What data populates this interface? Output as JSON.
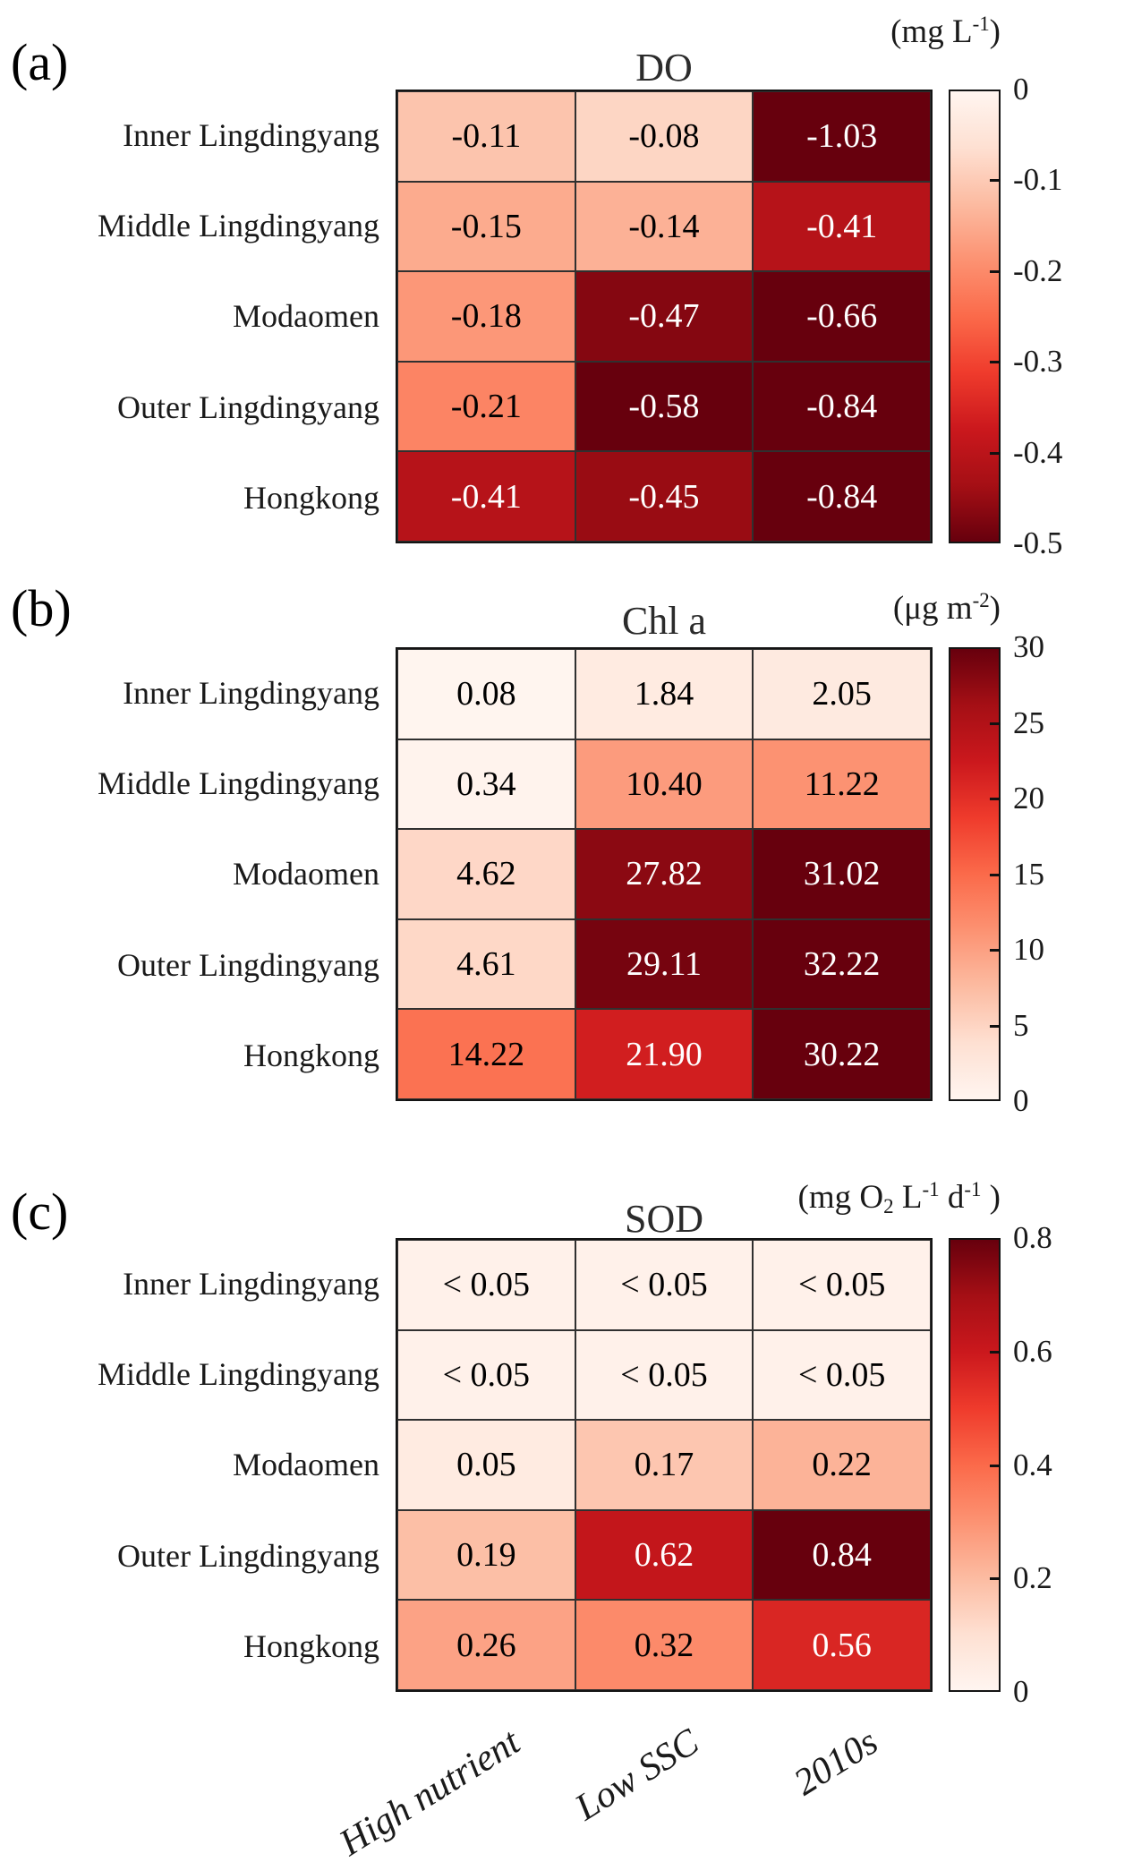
{
  "figure_type": "heatmap-figure",
  "x_axis_labels": [
    "High nutrient",
    "Low SSC",
    "2010s"
  ],
  "row_labels": [
    "Inner Lingdingyang",
    "Middle Lingdingyang",
    "Modaomen",
    "Outer Lingdingyang",
    "Hongkong"
  ],
  "colormap": "Reds",
  "colormap_stops": [
    "#fff5f0",
    "#fee0d2",
    "#fcbba1",
    "#fc9272",
    "#fb6a4a",
    "#ef3b2c",
    "#cb181d",
    "#a50f15",
    "#67000d"
  ],
  "chart_data": [
    {
      "type": "heatmap",
      "panel_letter": "(a)",
      "title": "DO",
      "unit_segments": [
        {
          "t": "(mg L"
        },
        {
          "t": "-1",
          "s": "sup"
        },
        {
          "t": ")"
        }
      ],
      "rows": [
        "Inner Lingdingyang",
        "Middle Lingdingyang",
        "Modaomen",
        "Outer Lingdingyang",
        "Hongkong"
      ],
      "columns": [
        "High nutrient",
        "Low SSC",
        "2010s"
      ],
      "cell_labels": [
        [
          "-0.11",
          "-0.08",
          "-1.03"
        ],
        [
          "-0.15",
          "-0.14",
          "-0.41"
        ],
        [
          "-0.18",
          "-0.47",
          "-0.66"
        ],
        [
          "-0.21",
          "-0.58",
          "-0.84"
        ],
        [
          "-0.41",
          "-0.45",
          "-0.84"
        ]
      ],
      "cell_values": [
        [
          -0.11,
          -0.08,
          -1.03
        ],
        [
          -0.15,
          -0.14,
          -0.41
        ],
        [
          -0.18,
          -0.47,
          -0.66
        ],
        [
          -0.21,
          -0.58,
          -0.84
        ],
        [
          -0.41,
          -0.45,
          -0.84
        ]
      ],
      "scale": {
        "max_abs": 0.5,
        "light_at_top": true,
        "range_labels": [
          0,
          -0.5
        ]
      },
      "colorbar_ticks": [
        "0",
        "-0.1",
        "-0.2",
        "-0.3",
        "-0.4",
        "-0.5"
      ]
    },
    {
      "type": "heatmap",
      "panel_letter": "(b)",
      "title": "Chl a",
      "unit_segments": [
        {
          "t": "(μg m"
        },
        {
          "t": "-2",
          "s": "sup"
        },
        {
          "t": ")"
        }
      ],
      "rows": [
        "Inner Lingdingyang",
        "Middle Lingdingyang",
        "Modaomen",
        "Outer Lingdingyang",
        "Hongkong"
      ],
      "columns": [
        "High nutrient",
        "Low SSC",
        "2010s"
      ],
      "cell_labels": [
        [
          "0.08",
          "1.84",
          "2.05"
        ],
        [
          "0.34",
          "10.40",
          "11.22"
        ],
        [
          "4.62",
          "27.82",
          "31.02"
        ],
        [
          "4.61",
          "29.11",
          "32.22"
        ],
        [
          "14.22",
          "21.90",
          "30.22"
        ]
      ],
      "cell_values": [
        [
          0.08,
          1.84,
          2.05
        ],
        [
          0.34,
          10.4,
          11.22
        ],
        [
          4.62,
          27.82,
          31.02
        ],
        [
          4.61,
          29.11,
          32.22
        ],
        [
          14.22,
          21.9,
          30.22
        ]
      ],
      "scale": {
        "max_abs": 30,
        "light_at_top": false,
        "range_labels": [
          30,
          0
        ]
      },
      "colorbar_ticks": [
        "30",
        "25",
        "20",
        "15",
        "10",
        "5",
        "0"
      ]
    },
    {
      "type": "heatmap",
      "panel_letter": "(c)",
      "title": "SOD",
      "unit_segments": [
        {
          "t": "(mg O"
        },
        {
          "t": "2",
          "s": "sub"
        },
        {
          "t": " L"
        },
        {
          "t": "-1",
          "s": "sup"
        },
        {
          "t": " d"
        },
        {
          "t": "-1",
          "s": "sup"
        },
        {
          "t": " )"
        }
      ],
      "rows": [
        "Inner Lingdingyang",
        "Middle Lingdingyang",
        "Modaomen",
        "Outer Lingdingyang",
        "Hongkong"
      ],
      "columns": [
        "High nutrient",
        "Low SSC",
        "2010s"
      ],
      "cell_labels": [
        [
          "< 0.05",
          "< 0.05",
          "< 0.05"
        ],
        [
          "< 0.05",
          "< 0.05",
          "< 0.05"
        ],
        [
          "0.05",
          "0.17",
          "0.22"
        ],
        [
          "0.19",
          "0.62",
          "0.84"
        ],
        [
          "0.26",
          "0.32",
          "0.56"
        ]
      ],
      "cell_values": [
        [
          0.02,
          0.02,
          0.02
        ],
        [
          0.02,
          0.02,
          0.02
        ],
        [
          0.05,
          0.17,
          0.22
        ],
        [
          0.19,
          0.62,
          0.84
        ],
        [
          0.26,
          0.32,
          0.56
        ]
      ],
      "scale": {
        "max_abs": 0.8,
        "light_at_top": false,
        "range_labels": [
          0.8,
          0
        ]
      },
      "colorbar_ticks": [
        "0.8",
        "0.6",
        "0.4",
        "0.2",
        "0"
      ]
    }
  ]
}
